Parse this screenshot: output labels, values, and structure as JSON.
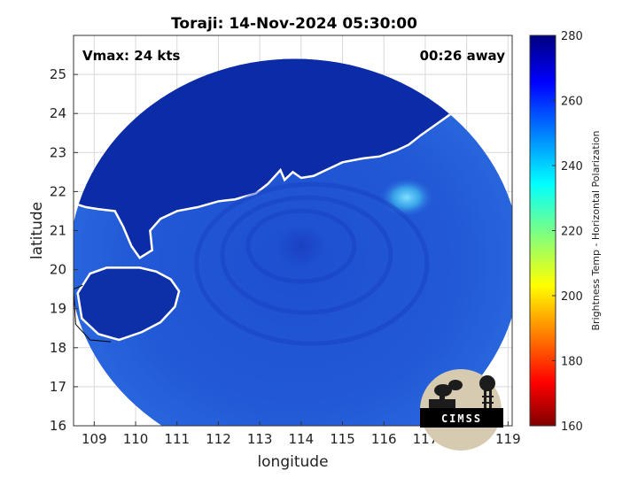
{
  "chart_data": {
    "type": "heatmap",
    "title": "Toraji: 14-Nov-2024 05:30:00",
    "xlabel": "longitude",
    "ylabel": "latitude",
    "xlim": [
      108.5,
      119.1
    ],
    "ylim": [
      16,
      26
    ],
    "x_ticks": [
      109,
      110,
      111,
      112,
      113,
      114,
      115,
      116,
      117,
      118,
      119
    ],
    "y_ticks": [
      16,
      17,
      18,
      19,
      20,
      21,
      22,
      23,
      24,
      25
    ],
    "grid": true,
    "colorbar": {
      "label": "Brightness Temp - Horizontal Polarization",
      "range": [
        160,
        280
      ],
      "ticks": [
        160,
        180,
        200,
        220,
        240,
        260,
        280
      ],
      "colormap": "jet"
    },
    "annotations": {
      "vmax": "Vmax: 24 kts",
      "time_away": "00:26 away"
    },
    "swath": {
      "center_lon": 113.85,
      "center_lat": 20.2,
      "radius_lon": 5.45,
      "radius_lat": 5.2
    },
    "storm_center": {
      "lon": 114.0,
      "lat": 20.6
    },
    "brightness_temp_regions": [
      {
        "region": "north of coast / land",
        "value": 270
      },
      {
        "region": "Hainan island",
        "value": 268
      },
      {
        "region": "ocean near coast",
        "value": 258
      },
      {
        "region": "open ocean south",
        "value": 252
      },
      {
        "region": "convective area near 116.6E 21.8N",
        "value": 240
      }
    ]
  },
  "logo": {
    "text": "CIMSS"
  },
  "colors": {
    "land": "#0c2ba6",
    "ocean": "#1f55d6",
    "ocean_south": "#2a66df",
    "convection": "#3fb6ee"
  }
}
